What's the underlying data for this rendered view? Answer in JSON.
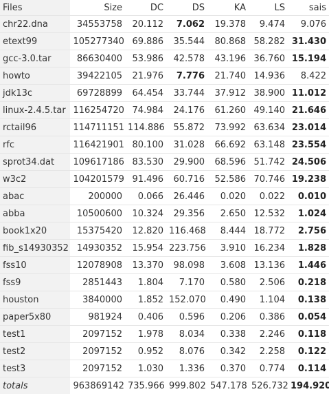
{
  "table": {
    "columns": [
      "Files",
      "Size",
      "DC",
      "DS",
      "KA",
      "LS",
      "sais"
    ],
    "rows": [
      {
        "cells": [
          "chr22.dna",
          "34553758",
          "20.112",
          "7.062",
          "19.378",
          "9.474",
          "9.076"
        ],
        "bold": [
          3
        ]
      },
      {
        "cells": [
          "etext99",
          "105277340",
          "69.886",
          "35.544",
          "80.868",
          "58.282",
          "31.430"
        ],
        "bold": [
          6
        ]
      },
      {
        "cells": [
          "gcc-3.0.tar",
          "86630400",
          "53.986",
          "42.578",
          "43.196",
          "36.760",
          "15.194"
        ],
        "bold": [
          6
        ]
      },
      {
        "cells": [
          "howto",
          "39422105",
          "21.976",
          "7.776",
          "21.740",
          "14.936",
          "8.422"
        ],
        "bold": [
          3
        ]
      },
      {
        "cells": [
          "jdk13c",
          "69728899",
          "64.454",
          "33.744",
          "37.912",
          "38.900",
          "11.012"
        ],
        "bold": [
          6
        ]
      },
      {
        "cells": [
          "linux-2.4.5.tar",
          "116254720",
          "74.984",
          "24.176",
          "61.260",
          "49.140",
          "21.646"
        ],
        "bold": [
          6
        ]
      },
      {
        "cells": [
          "rctail96",
          "114711151",
          "114.886",
          "55.872",
          "73.992",
          "63.634",
          "23.014"
        ],
        "bold": [
          6
        ]
      },
      {
        "cells": [
          "rfc",
          "116421901",
          "80.100",
          "31.028",
          "66.692",
          "63.148",
          "23.554"
        ],
        "bold": [
          6
        ]
      },
      {
        "cells": [
          "sprot34.dat",
          "109617186",
          "83.530",
          "29.900",
          "68.596",
          "51.742",
          "24.506"
        ],
        "bold": [
          6
        ]
      },
      {
        "cells": [
          "w3c2",
          "104201579",
          "91.496",
          "60.716",
          "52.586",
          "70.746",
          "19.238"
        ],
        "bold": [
          6
        ]
      },
      {
        "cells": [
          "abac",
          "200000",
          "0.066",
          "26.446",
          "0.020",
          "0.022",
          "0.010"
        ],
        "bold": [
          6
        ]
      },
      {
        "cells": [
          "abba",
          "10500600",
          "10.324",
          "29.356",
          "2.650",
          "12.532",
          "1.024"
        ],
        "bold": [
          6
        ]
      },
      {
        "cells": [
          "book1x20",
          "15375420",
          "12.820",
          "116.468",
          "8.444",
          "18.772",
          "2.756"
        ],
        "bold": [
          6
        ]
      },
      {
        "cells": [
          "fib_s14930352",
          "14930352",
          "15.954",
          "223.756",
          "3.910",
          "16.234",
          "1.828"
        ],
        "bold": [
          6
        ]
      },
      {
        "cells": [
          "fss10",
          "12078908",
          "13.370",
          "98.098",
          "3.608",
          "13.136",
          "1.446"
        ],
        "bold": [
          6
        ]
      },
      {
        "cells": [
          "fss9",
          "2851443",
          "1.804",
          "7.170",
          "0.580",
          "2.506",
          "0.218"
        ],
        "bold": [
          6
        ]
      },
      {
        "cells": [
          "houston",
          "3840000",
          "1.852",
          "152.070",
          "0.490",
          "1.104",
          "0.138"
        ],
        "bold": [
          6
        ]
      },
      {
        "cells": [
          "paper5x80",
          "981924",
          "0.406",
          "0.596",
          "0.206",
          "0.386",
          "0.054"
        ],
        "bold": [
          6
        ]
      },
      {
        "cells": [
          "test1",
          "2097152",
          "1.978",
          "8.034",
          "0.338",
          "2.246",
          "0.118"
        ],
        "bold": [
          6
        ]
      },
      {
        "cells": [
          "test2",
          "2097152",
          "0.952",
          "8.076",
          "0.342",
          "2.258",
          "0.122"
        ],
        "bold": [
          6
        ]
      },
      {
        "cells": [
          "test3",
          "2097152",
          "1.030",
          "1.336",
          "0.370",
          "0.774",
          "0.114"
        ],
        "bold": [
          6
        ]
      }
    ],
    "totals": {
      "cells": [
        "totals",
        "963869142",
        "735.966",
        "999.802",
        "547.178",
        "526.732",
        "194.920"
      ],
      "bold": [
        6
      ]
    }
  }
}
